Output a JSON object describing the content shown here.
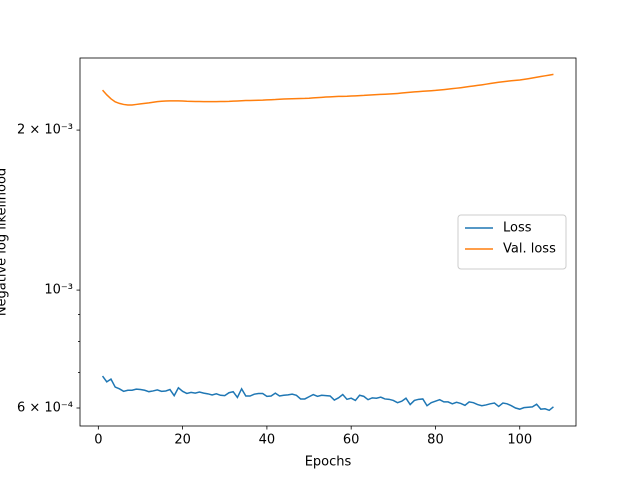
{
  "chart_data": {
    "type": "line",
    "xlabel": "Epochs",
    "ylabel": "Negative log likelihood",
    "x": [
      1,
      2,
      3,
      4,
      5,
      6,
      7,
      8,
      9,
      10,
      11,
      12,
      13,
      14,
      15,
      16,
      17,
      18,
      19,
      20,
      21,
      22,
      23,
      24,
      25,
      26,
      27,
      28,
      29,
      30,
      31,
      32,
      33,
      34,
      35,
      36,
      37,
      38,
      39,
      40,
      41,
      42,
      43,
      44,
      45,
      46,
      47,
      48,
      49,
      50,
      51,
      52,
      53,
      54,
      55,
      56,
      57,
      58,
      59,
      60,
      61,
      62,
      63,
      64,
      65,
      66,
      67,
      68,
      69,
      70,
      71,
      72,
      73,
      74,
      75,
      76,
      77,
      78,
      79,
      80,
      81,
      82,
      83,
      84,
      85,
      86,
      87,
      88,
      89,
      90,
      91,
      92,
      93,
      94,
      95,
      96,
      97,
      98,
      99,
      100,
      101,
      102,
      103,
      104,
      105,
      106,
      107,
      108
    ],
    "series": [
      {
        "name": "Loss",
        "color": "#1f77b4",
        "values": [
          0.000689,
          0.000672,
          0.00068,
          0.000657,
          0.000652,
          0.000645,
          0.000648,
          0.000648,
          0.000651,
          0.00065,
          0.000648,
          0.000644,
          0.000646,
          0.000649,
          0.000645,
          0.000646,
          0.00065,
          0.000633,
          0.000655,
          0.000645,
          0.000639,
          0.000642,
          0.00064,
          0.000643,
          0.00064,
          0.000638,
          0.000635,
          0.000638,
          0.000634,
          0.000633,
          0.000641,
          0.000644,
          0.000628,
          0.000652,
          0.000632,
          0.000632,
          0.000637,
          0.000639,
          0.000639,
          0.000631,
          0.000632,
          0.00064,
          0.000632,
          0.000634,
          0.000635,
          0.000637,
          0.000634,
          0.000624,
          0.000624,
          0.00063,
          0.000636,
          0.000631,
          0.000634,
          0.000633,
          0.000632,
          0.000621,
          0.000627,
          0.000636,
          0.000623,
          0.000626,
          0.00062,
          0.000634,
          0.000631,
          0.000622,
          0.000627,
          0.000626,
          0.000629,
          0.000624,
          0.000623,
          0.00062,
          0.000614,
          0.000618,
          0.000626,
          0.000609,
          0.00062,
          0.000623,
          0.000624,
          0.000606,
          0.000614,
          0.000618,
          0.000622,
          0.000616,
          0.000616,
          0.000611,
          0.000615,
          0.000612,
          0.000607,
          0.000616,
          0.000614,
          0.000609,
          0.000606,
          0.000608,
          0.000611,
          0.000613,
          0.000604,
          0.000613,
          0.000611,
          0.000606,
          0.0006,
          0.000597,
          0.000601,
          0.000602,
          0.000603,
          0.00061,
          0.000597,
          0.000598,
          0.000594,
          0.000603
        ]
      },
      {
        "name": "Val. loss",
        "color": "#ff7f0e",
        "values": [
          0.002378,
          0.00233,
          0.00229,
          0.00226,
          0.002245,
          0.002235,
          0.00223,
          0.00223,
          0.002235,
          0.00224,
          0.002245,
          0.00225,
          0.002256,
          0.002262,
          0.002266,
          0.002268,
          0.00227,
          0.00227,
          0.00227,
          0.002268,
          0.002266,
          0.002265,
          0.002264,
          0.002263,
          0.002262,
          0.002262,
          0.002262,
          0.002262,
          0.002263,
          0.002264,
          0.002265,
          0.002267,
          0.002269,
          0.002271,
          0.002273,
          0.002274,
          0.002275,
          0.002276,
          0.002277,
          0.002279,
          0.002281,
          0.002283,
          0.002286,
          0.002288,
          0.00229,
          0.002291,
          0.002292,
          0.002293,
          0.002294,
          0.002296,
          0.002299,
          0.002302,
          0.002305,
          0.002308,
          0.00231,
          0.002312,
          0.002314,
          0.002315,
          0.002316,
          0.002318,
          0.00232,
          0.002322,
          0.002324,
          0.002327,
          0.00233,
          0.002332,
          0.002334,
          0.002336,
          0.002338,
          0.002341,
          0.002344,
          0.002348,
          0.002352,
          0.002356,
          0.00236,
          0.002363,
          0.002366,
          0.002369,
          0.002372,
          0.002375,
          0.002379,
          0.002383,
          0.002388,
          0.002393,
          0.002398,
          0.002403,
          0.002409,
          0.002415,
          0.002421,
          0.002427,
          0.002433,
          0.00244,
          0.002447,
          0.002454,
          0.00246,
          0.002466,
          0.002471,
          0.002476,
          0.00248,
          0.002485,
          0.002491,
          0.002498,
          0.002506,
          0.002514,
          0.002522,
          0.00253,
          0.002538,
          0.002546
        ]
      }
    ],
    "xlim": [
      -4.35,
      113.35
    ],
    "xticks": [
      0,
      20,
      40,
      60,
      80,
      100
    ],
    "ylim": [
      0.000555,
      0.002733
    ],
    "yscale": "log",
    "yticks": [
      {
        "value": 0.0006,
        "label": "6 × 10⁻⁴"
      },
      {
        "value": 0.001,
        "label": "10⁻³"
      },
      {
        "value": 0.002,
        "label": "2 × 10⁻³"
      }
    ],
    "yminorticks": [
      0.0007,
      0.0008,
      0.0009
    ],
    "legend": "center right",
    "grid": false
  }
}
